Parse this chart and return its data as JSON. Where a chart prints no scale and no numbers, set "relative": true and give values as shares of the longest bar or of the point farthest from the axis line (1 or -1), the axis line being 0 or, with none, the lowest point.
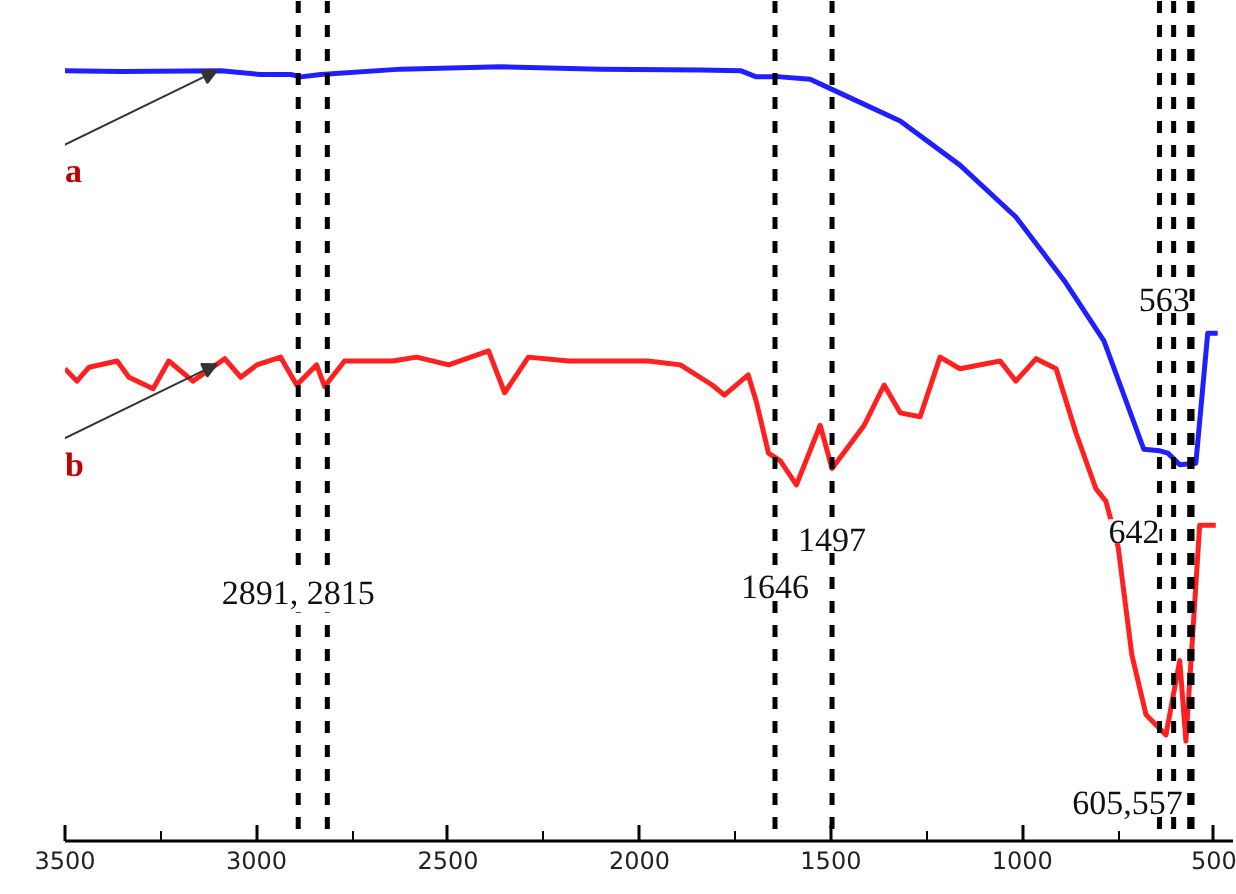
{
  "chart_data": {
    "type": "line",
    "relative": true,
    "xlim": [
      3500,
      450
    ],
    "xticks": [
      3500,
      {
        "value": 3250,
        "label": null
      },
      3000,
      {
        "value": 2750,
        "label": null
      },
      2500,
      {
        "value": 2250,
        "label": null
      },
      2000,
      {
        "value": 1750,
        "label": null
      },
      1500,
      {
        "value": 1250,
        "label": null
      },
      1000,
      {
        "value": 750,
        "label": null
      },
      500
    ],
    "grid": false,
    "legend": false,
    "line_style": "solid",
    "marker": "none",
    "series": [
      {
        "name": "a",
        "color": "#2020ff",
        "x": [
          3500,
          3354,
          3093,
          2989,
          2910,
          2884,
          2832,
          2623,
          2363,
          2102,
          1841,
          1736,
          1695,
          1632,
          1554,
          1476,
          1319,
          1163,
          1017,
          891,
          787,
          683,
          641,
          620,
          589,
          547,
          516,
          490
        ],
        "values": [
          0.995,
          0.994,
          0.995,
          0.99,
          0.99,
          0.987,
          0.99,
          0.997,
          1.0,
          0.997,
          0.996,
          0.995,
          0.987,
          0.987,
          0.984,
          0.966,
          0.93,
          0.873,
          0.806,
          0.724,
          0.646,
          0.506,
          0.504,
          0.501,
          0.486,
          0.488,
          0.656,
          0.656
        ]
      },
      {
        "name": "b",
        "color": "#ff2020",
        "x": [
          3500,
          3469,
          3437,
          3364,
          3333,
          3270,
          3229,
          3166,
          3083,
          3041,
          2999,
          2937,
          2895,
          2843,
          2822,
          2770,
          2707,
          2644,
          2582,
          2498,
          2394,
          2352,
          2290,
          2185,
          2081,
          1977,
          1893,
          1810,
          1778,
          1716,
          1695,
          1663,
          1632,
          1590,
          1528,
          1497,
          1413,
          1361,
          1319,
          1267,
          1215,
          1163,
          1058,
          1017,
          964,
          912,
          860,
          808,
          782,
          750,
          714,
          677,
          625,
          599,
          589,
          573,
          537,
          495
        ],
        "values": [
          0.61,
          0.594,
          0.612,
          0.62,
          0.599,
          0.584,
          0.62,
          0.594,
          0.623,
          0.599,
          0.615,
          0.625,
          0.589,
          0.615,
          0.587,
          0.62,
          0.62,
          0.62,
          0.625,
          0.615,
          0.633,
          0.579,
          0.625,
          0.62,
          0.62,
          0.62,
          0.615,
          0.589,
          0.576,
          0.602,
          0.568,
          0.501,
          0.491,
          0.46,
          0.537,
          0.481,
          0.537,
          0.589,
          0.553,
          0.548,
          0.625,
          0.61,
          0.62,
          0.594,
          0.623,
          0.61,
          0.527,
          0.455,
          0.439,
          0.38,
          0.24,
          0.163,
          0.137,
          0.207,
          0.233,
          0.129,
          0.408,
          0.408
        ]
      }
    ],
    "ref_lines": [
      {
        "axis": "x",
        "value": 2891,
        "label": null,
        "line_style": "dashed",
        "color": "#000000"
      },
      {
        "axis": "x",
        "value": 2815,
        "label": null,
        "line_style": "dashed",
        "color": "#000000"
      },
      {
        "axis": "x",
        "value": 1646,
        "label": null,
        "line_style": "dashed",
        "color": "#000000"
      },
      {
        "axis": "x",
        "value": 1497,
        "label": null,
        "line_style": "dashed",
        "color": "#000000"
      },
      {
        "axis": "x",
        "value": 642,
        "label": null,
        "line_style": "dashed",
        "color": "#000000"
      },
      {
        "axis": "x",
        "value": 605,
        "label": null,
        "line_style": "dashed",
        "color": "#000000"
      },
      {
        "axis": "x",
        "value": 563,
        "label": null,
        "line_style": "dashed",
        "color": "#000000"
      },
      {
        "axis": "x",
        "value": 557,
        "label": null,
        "line_style": "dashed",
        "color": "#000000"
      }
    ],
    "annotations": [
      {
        "text": "2891, 2815",
        "x": 2891,
        "y": 0.32
      },
      {
        "text": "1646",
        "x": 1646,
        "y": 0.33
      },
      {
        "text": "1497",
        "x": 1497,
        "y": 0.39
      },
      {
        "text": "642",
        "x": 642,
        "y": 0.4
      },
      {
        "text": "563",
        "x": 563,
        "y": 0.7
      },
      {
        "text": "605,557",
        "x": 581,
        "y": 0.05
      }
    ]
  }
}
